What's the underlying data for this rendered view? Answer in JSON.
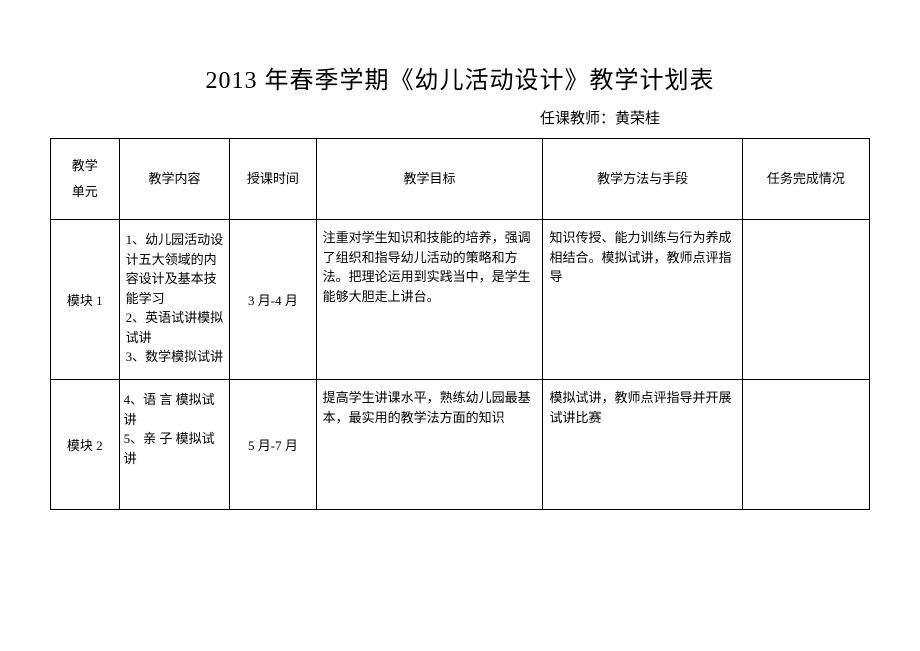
{
  "title": "2013 年春季学期《幼儿活动设计》教学计划表",
  "subtitle": "任课教师：黄荣桂",
  "headers": {
    "unit": "教学\n单元",
    "content": "教学内容",
    "time": "授课时间",
    "goal": "教学目标",
    "method": "教学方法与手段",
    "status": "任务完成情况"
  },
  "rows": [
    {
      "unit": "模块 1",
      "content_items": [
        "1、幼儿园活动设计五大领域的内容设计及基本技能学习",
        "2、英语试讲模拟试讲",
        "3、数学模拟试讲"
      ],
      "time": "3 月-4 月",
      "goal": "注重对学生知识和技能的培养，强调了组织和指导幼儿活动的策略和方法。把理论运用到实践当中，是学生能够大胆走上讲台。",
      "method": "知识传授、能力训练与行为养成相结合。模拟试讲，教师点评指导",
      "status": ""
    },
    {
      "unit": "模块 2",
      "content_items": [
        "4、语 言 模拟试讲",
        "5、亲 子 模拟试讲"
      ],
      "time": "5 月-7 月",
      "goal": "提高学生讲课水平，熟练幼儿园最基本，最实用的教学法方面的知识",
      "method": "模拟试讲，教师点评指导并开展试讲比赛",
      "status": ""
    }
  ]
}
